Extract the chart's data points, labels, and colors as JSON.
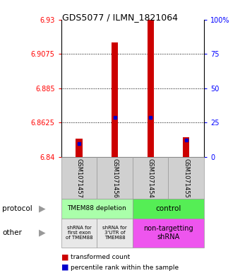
{
  "title": "GDS5077 / ILMN_1821064",
  "samples": [
    "GSM1071457",
    "GSM1071456",
    "GSM1071454",
    "GSM1071455"
  ],
  "bar_base": 6.84,
  "bar_tops": [
    6.852,
    6.915,
    6.93,
    6.853
  ],
  "percentile_values": [
    6.849,
    6.866,
    6.866,
    6.851
  ],
  "ylim": [
    6.84,
    6.93
  ],
  "yticks_left": [
    6.84,
    6.8625,
    6.885,
    6.9075,
    6.93
  ],
  "yticks_right": [
    0,
    25,
    50,
    75,
    100
  ],
  "bar_color": "#cc0000",
  "percentile_color": "#0000cc",
  "protocol_labels": [
    "TMEM88 depletion",
    "control"
  ],
  "protocol_color_left": "#aaffaa",
  "protocol_color_right": "#55ee55",
  "other_labels": [
    "shRNA for\nfirst exon\nof TMEM88",
    "shRNA for\n3'UTR of\nTMEM88",
    "non-targetting\nshRNA"
  ],
  "other_color_grey": "#e8e8e8",
  "other_color_pink": "#ee55ee",
  "legend_red": "transformed count",
  "legend_blue": "percentile rank within the sample",
  "protocol_arrow_label": "protocol",
  "other_arrow_label": "other",
  "bar_width": 0.18
}
